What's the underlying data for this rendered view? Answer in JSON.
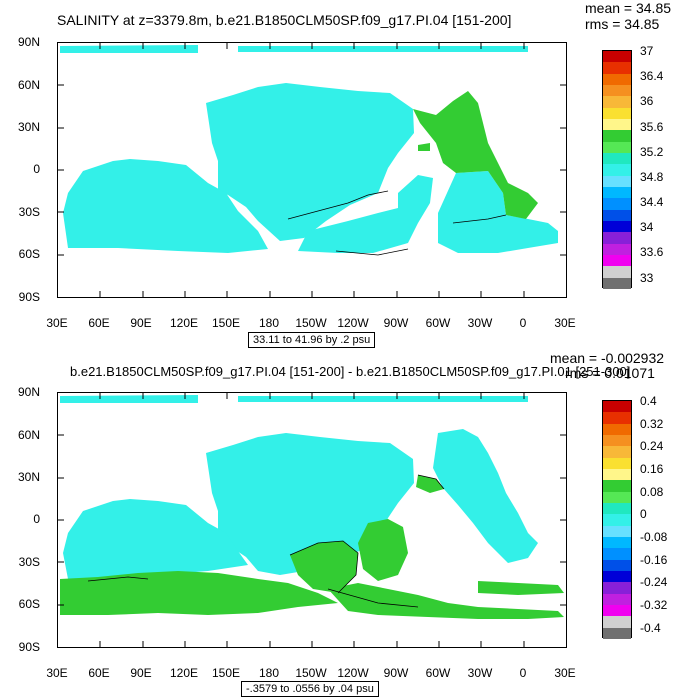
{
  "panel1": {
    "title": "SALINITY at z=3379.8m, b.e21.B1850CLM50SP.f09_g17.PI.04 [151-200]",
    "mean": "mean = 34.85",
    "rms": "rms = 34.85",
    "range_note": "33.11 to 41.96 by .2 psu",
    "colorbar_labels": [
      "37",
      "36.4",
      "36",
      "35.6",
      "35.2",
      "34.8",
      "34.4",
      "34",
      "33.6",
      "33"
    ],
    "colorbar_colors": [
      "#c80000",
      "#e83000",
      "#f06a00",
      "#f59020",
      "#f8b838",
      "#fae030",
      "#fff68a",
      "#33cc33",
      "#55e855",
      "#20e8c0",
      "#33f0e8",
      "#66e0ff",
      "#00b8ff",
      "#0090ff",
      "#0050e8",
      "#0000d8",
      "#8820d8",
      "#c020e0",
      "#f000f0",
      "#d0d0d0",
      "#707070"
    ]
  },
  "panel2": {
    "title": "b.e21.B1850CLM50SP.f09_g17.PI.04 [151-200] - b.e21.B1850CLM50SP.f09_g17.PI.01 [251-300]",
    "mean": "mean = -0.002932",
    "rms": "rms = 0.01071",
    "range_note": "-.3579 to .0556 by .04 psu",
    "colorbar_labels": [
      "0.4",
      "0.32",
      "0.24",
      "0.16",
      "0.08",
      "0",
      "-0.08",
      "-0.16",
      "-0.24",
      "-0.32",
      "-0.4"
    ],
    "colorbar_colors": [
      "#c80000",
      "#e83000",
      "#f06a00",
      "#f59020",
      "#f8b838",
      "#fae030",
      "#fff68a",
      "#33cc33",
      "#55e855",
      "#20e8c0",
      "#33f0e8",
      "#66e0ff",
      "#00b8ff",
      "#0090ff",
      "#0050e8",
      "#0000d8",
      "#8820d8",
      "#c020e0",
      "#f000f0",
      "#d0d0d0",
      "#707070"
    ]
  },
  "lat_labels": [
    "90N",
    "60N",
    "30N",
    "0",
    "30S",
    "60S",
    "90S"
  ],
  "lon_labels": [
    "30E",
    "60E",
    "90E",
    "120E",
    "150E",
    "180",
    "150W",
    "120W",
    "90W",
    "60W",
    "30W",
    "0",
    "30E"
  ],
  "colors": {
    "ocean_cyan": "#33f0e8",
    "ocean_green": "#33cc33",
    "land": "#ffffff"
  }
}
